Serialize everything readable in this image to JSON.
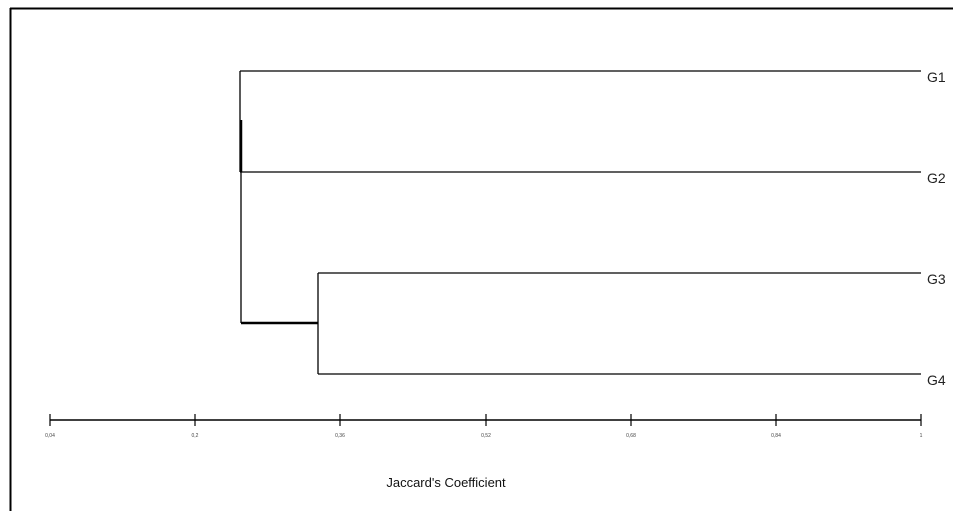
{
  "dendrogram": {
    "leaves": [
      "G1",
      "G2",
      "G3",
      "G4"
    ],
    "merges": [
      {
        "join": [
          "G3",
          "G4"
        ],
        "height": 0.31
      },
      {
        "join": [
          "G1",
          "G2"
        ],
        "height": 0.2
      },
      {
        "join": [
          "G1-G2",
          "G3-G4"
        ],
        "height": 0.2
      }
    ],
    "axis": {
      "title": "Jaccard's Coefficient",
      "ticks": [
        "0,04",
        "0,2",
        "0,36",
        "0,52",
        "0,68",
        "0,84",
        "1"
      ],
      "tick_values": [
        0.04,
        0.2,
        0.36,
        0.52,
        0.68,
        0.84,
        1.0
      ]
    }
  }
}
